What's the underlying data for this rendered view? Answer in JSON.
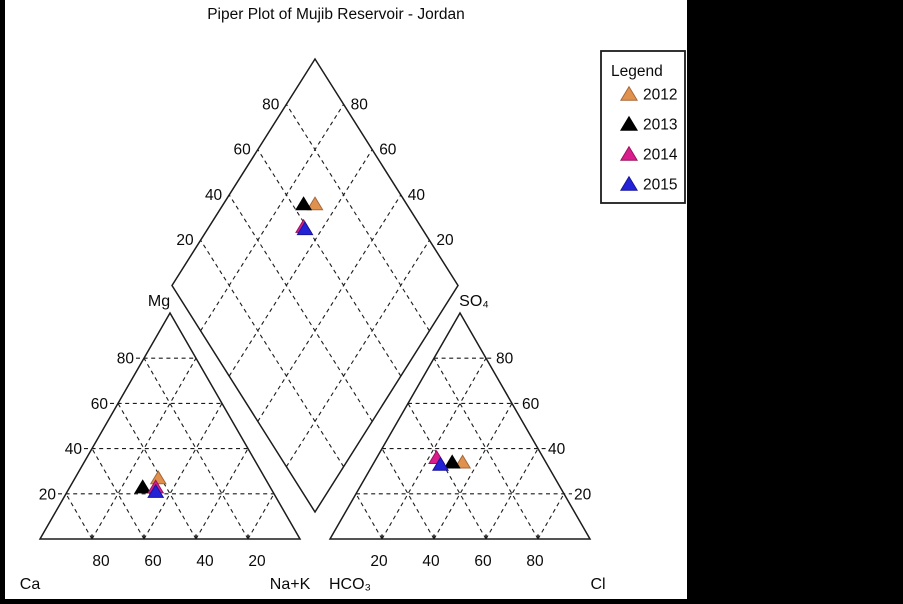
{
  "title": "Piper Plot of Mujib Reservoir - Jordan",
  "legend": {
    "title": "Legend",
    "items": [
      {
        "label": "2012",
        "color": "#E0914E",
        "edge_color": "#A5683A"
      },
      {
        "label": "2013",
        "color": "#000000",
        "edge_color": "#000000"
      },
      {
        "label": "2014",
        "color": "#D91D8C",
        "edge_color": "#99125F"
      },
      {
        "label": "2015",
        "color": "#2422D6",
        "edge_color": "#17159B"
      }
    ]
  },
  "colors": {
    "frame_line": "#1c1c1c",
    "grid_line": "#1c1c1c",
    "figure_background": "#ffffff",
    "page_background": "#000000"
  },
  "chart_data": {
    "type": "piper-ternary",
    "title": "Piper Plot of Mujib Reservoir - Jordan",
    "grid": "dashed, every 20%",
    "legend_position": "upper right",
    "panels": {
      "cation": {
        "corner_labels": {
          "left": "Ca",
          "top": "Mg",
          "right": "Na+K"
        },
        "left_axis_tick_labels": [
          "80",
          "60",
          "40",
          "20"
        ],
        "bottom_axis_tick_labels": [
          "80",
          "60",
          "40",
          "20"
        ],
        "ticks": [
          20,
          40,
          60,
          80
        ]
      },
      "anion": {
        "corner_labels": {
          "left": "HCO₃",
          "top": "SO₄",
          "right": "Cl"
        },
        "right_axis_tick_labels": [
          "80",
          "60",
          "40",
          "20"
        ],
        "bottom_axis_tick_labels": [
          "20",
          "40",
          "60",
          "80"
        ],
        "ticks": [
          20,
          40,
          60,
          80
        ]
      },
      "diamond": {
        "left_axis_tick_labels": [
          "80",
          "60",
          "40",
          "20"
        ],
        "right_axis_tick_labels": [
          "80",
          "60",
          "40",
          "20"
        ],
        "ticks": [
          20,
          40,
          60,
          80
        ],
        "note": "left coordinate = Ca+Mg, right coordinate = SO4+Cl"
      }
    },
    "series": [
      {
        "name": "2012",
        "color": "#E0914E",
        "edge_color": "#A5683A",
        "cation_pct": {
          "Ca": 41,
          "Mg": 27,
          "Na_K": 32
        },
        "anion_pct": {
          "HCO3": 32,
          "SO4": 34,
          "Cl": 34
        }
      },
      {
        "name": "2013",
        "color": "#000000",
        "edge_color": "#000000",
        "cation_pct": {
          "Ca": 49,
          "Mg": 23,
          "Na_K": 28
        },
        "anion_pct": {
          "HCO3": 36,
          "SO4": 34,
          "Cl": 30
        }
      },
      {
        "name": "2014",
        "color": "#D91D8C",
        "edge_color": "#99125F",
        "cation_pct": {
          "Ca": 44,
          "Mg": 23,
          "Na_K": 33
        },
        "anion_pct": {
          "HCO3": 41,
          "SO4": 36,
          "Cl": 23
        }
      },
      {
        "name": "2015",
        "color": "#2422D6",
        "edge_color": "#17159B",
        "cation_pct": {
          "Ca": 45,
          "Mg": 21,
          "Na_K": 34
        },
        "anion_pct": {
          "HCO3": 41,
          "SO4": 33,
          "Cl": 26
        }
      }
    ]
  }
}
